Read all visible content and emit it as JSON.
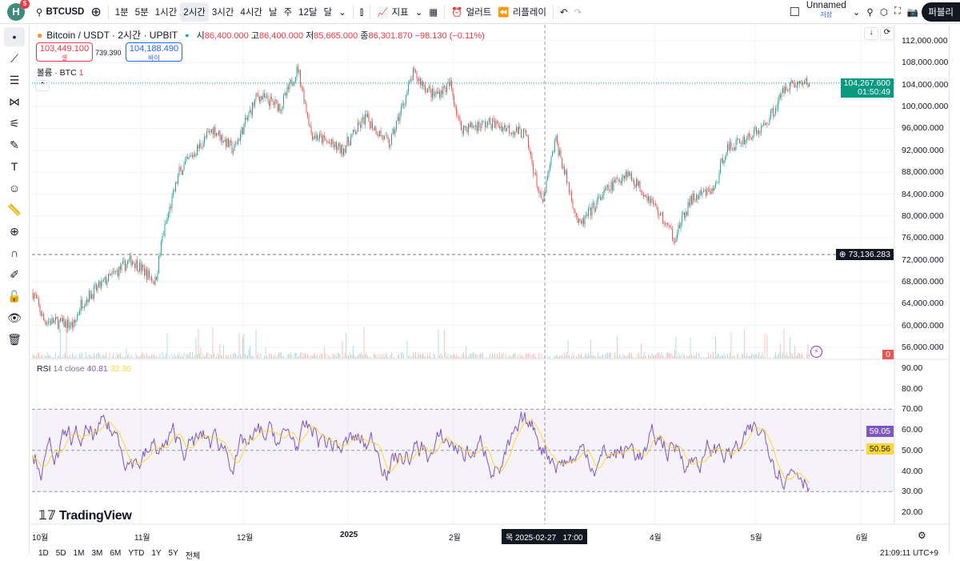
{
  "topbar": {
    "avatar_letter": "H",
    "notifications": "5",
    "symbol": "BTCUSD",
    "intervals": [
      "1분",
      "5분",
      "1시간",
      "2시간",
      "3시간",
      "4시간",
      "날",
      "주",
      "12달",
      "달"
    ],
    "active_interval": "2시간",
    "indicators": "지표",
    "alerts": "얼러트",
    "replay": "리플레이",
    "layout_name": "Unnamed",
    "layout_status": "저장",
    "publish": "퍼블리"
  },
  "legend": {
    "title": "Bitcoin / USDT · 2시간 · UPBIT",
    "o_label": "시",
    "open": "86,400.000",
    "h_label": "고",
    "high": "86,400.000",
    "l_label": "저",
    "low": "85,665.000",
    "c_label": "종",
    "close": "86,301.870",
    "change": "−98.130 (−0.11%)",
    "sell_price": "103,449.100",
    "sell_label": "셀",
    "spread": "739.390",
    "buy_price": "104,188.490",
    "buy_label": "바이",
    "volume_label": "볼륨 · BTC",
    "volume_value": "1"
  },
  "price_axis": [
    "112,000.000",
    "108,000.000",
    "104,000.000",
    "100,000.000",
    "96,000.000",
    "92,000.000",
    "88,000.000",
    "84,000.000",
    "80,000.000",
    "76,000.000",
    "72,000.000",
    "68,000.000",
    "64,000.000",
    "60,000.000",
    "56,000.000"
  ],
  "last_price": "104,267.600",
  "countdown": "01:50:49",
  "crosshair_price": "73,136.283",
  "volume_tag": "0",
  "rsi": {
    "label": "RSI",
    "params": "14 close",
    "value": "40.81",
    "ma_value": "32.30",
    "axis": [
      "90.00",
      "80.00",
      "70.00",
      "60.00",
      "50.00",
      "40.00",
      "30.00",
      "20.00"
    ],
    "current": "59.05",
    "current_ma": "50.56",
    "upper_band": 70,
    "lower_band": 30
  },
  "time_axis": [
    "10월",
    "11월",
    "12월",
    "2025",
    "2월",
    "4월",
    "5월",
    "6월"
  ],
  "crosshair_time": "목 2025-02-27   17:00",
  "bottom": {
    "ranges": [
      "1D",
      "5D",
      "1M",
      "3M",
      "6M",
      "YTD",
      "1Y",
      "5Y",
      "전체"
    ],
    "clock": "21:09:11 UTC+9"
  },
  "watermark": "TradingView",
  "colors": {
    "up": "#26a69a",
    "down": "#ef5350",
    "rsi": "#7e57c2",
    "rsi_ma": "#fdd835",
    "last": "#089981",
    "accent": "#2962ff"
  },
  "price_path": [
    [
      "2024-09-30",
      66
    ],
    [
      "2024-10-03",
      61
    ],
    [
      "2024-10-12",
      60
    ],
    [
      "2024-10-14",
      64
    ],
    [
      "2024-10-21",
      68
    ],
    [
      "2024-10-29",
      72
    ],
    [
      "2024-11-05",
      68
    ],
    [
      "2024-11-07",
      76
    ],
    [
      "2024-11-12",
      88
    ],
    [
      "2024-11-22",
      96
    ],
    [
      "2024-11-28",
      92
    ],
    [
      "2024-12-05",
      102
    ],
    [
      "2024-12-12",
      100
    ],
    [
      "2024-12-17",
      107
    ],
    [
      "2024-12-21",
      95
    ],
    [
      "2024-12-30",
      92
    ],
    [
      "2025-01-06",
      98
    ],
    [
      "2025-01-13",
      93
    ],
    [
      "2025-01-20",
      106
    ],
    [
      "2025-01-26",
      102
    ],
    [
      "2025-01-31",
      104
    ],
    [
      "2025-02-03",
      96
    ],
    [
      "2025-02-12",
      97
    ],
    [
      "2025-02-22",
      95
    ],
    [
      "2025-02-27",
      82
    ],
    [
      "2025-03-03",
      94
    ],
    [
      "2025-03-10",
      78
    ],
    [
      "2025-03-17",
      84
    ],
    [
      "2025-03-24",
      88
    ],
    [
      "2025-03-31",
      83
    ],
    [
      "2025-04-07",
      76
    ],
    [
      "2025-04-12",
      83
    ],
    [
      "2025-04-19",
      85
    ],
    [
      "2025-04-22",
      92
    ],
    [
      "2025-05-03",
      96
    ],
    [
      "2025-05-07",
      100
    ],
    [
      "2025-05-10",
      104
    ],
    [
      "2025-05-17",
      104.3
    ]
  ]
}
